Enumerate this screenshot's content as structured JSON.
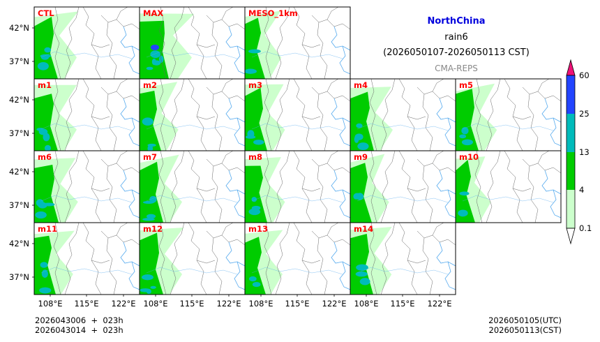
{
  "title": {
    "region": "NorthChina",
    "variable": "rain6",
    "period": "(2026050107-2026050113 CST)",
    "source": "CMA-REPS"
  },
  "colors": {
    "title": "#0000dd",
    "source": "#888888",
    "panel_label": "#ff0000",
    "bins": [
      "#ccffcc",
      "#00cc00",
      "#00bbbb",
      "#2244ff"
    ],
    "extend_max": "#ee1177",
    "extend_min": "#ffffff",
    "river": "#55aaee",
    "border": "#666666"
  },
  "panels": [
    {
      "label": "CTL",
      "row": 0,
      "col": 0,
      "intensity": 0.6
    },
    {
      "label": "MAX",
      "row": 0,
      "col": 1,
      "intensity": 1.0
    },
    {
      "label": "MESO_1km",
      "row": 0,
      "col": 2,
      "intensity": 0.35
    },
    {
      "label": "m1",
      "row": 1,
      "col": 0,
      "intensity": 0.6
    },
    {
      "label": "m2",
      "row": 1,
      "col": 1,
      "intensity": 0.45
    },
    {
      "label": "m3",
      "row": 1,
      "col": 2,
      "intensity": 0.5
    },
    {
      "label": "m4",
      "row": 1,
      "col": 3,
      "intensity": 0.6
    },
    {
      "label": "m5",
      "row": 1,
      "col": 4,
      "intensity": 0.55
    },
    {
      "label": "m6",
      "row": 2,
      "col": 0,
      "intensity": 0.65
    },
    {
      "label": "m7",
      "row": 2,
      "col": 1,
      "intensity": 0.6
    },
    {
      "label": "m8",
      "row": 2,
      "col": 2,
      "intensity": 0.5
    },
    {
      "label": "m9",
      "row": 2,
      "col": 3,
      "intensity": 0.45
    },
    {
      "label": "m10",
      "row": 2,
      "col": 4,
      "intensity": 0.3
    },
    {
      "label": "m11",
      "row": 3,
      "col": 0,
      "intensity": 0.45
    },
    {
      "label": "m12",
      "row": 3,
      "col": 1,
      "intensity": 0.6
    },
    {
      "label": "m13",
      "row": 3,
      "col": 2,
      "intensity": 0.4
    },
    {
      "label": "m14",
      "row": 3,
      "col": 3,
      "intensity": 0.55
    }
  ],
  "lat_ticks": [
    "42°N",
    "37°N"
  ],
  "lon_ticks": [
    "108°E",
    "115°E",
    "122°E"
  ],
  "colorbar": {
    "levels": [
      "0.1",
      "4",
      "13",
      "25",
      "60"
    ]
  },
  "footer": {
    "init_line1": "2026043006  +  023h",
    "init_line2": "2026043014  +  023h",
    "valid_utc": "2026050105(UTC)",
    "valid_cst": "2026050113(CST)"
  }
}
